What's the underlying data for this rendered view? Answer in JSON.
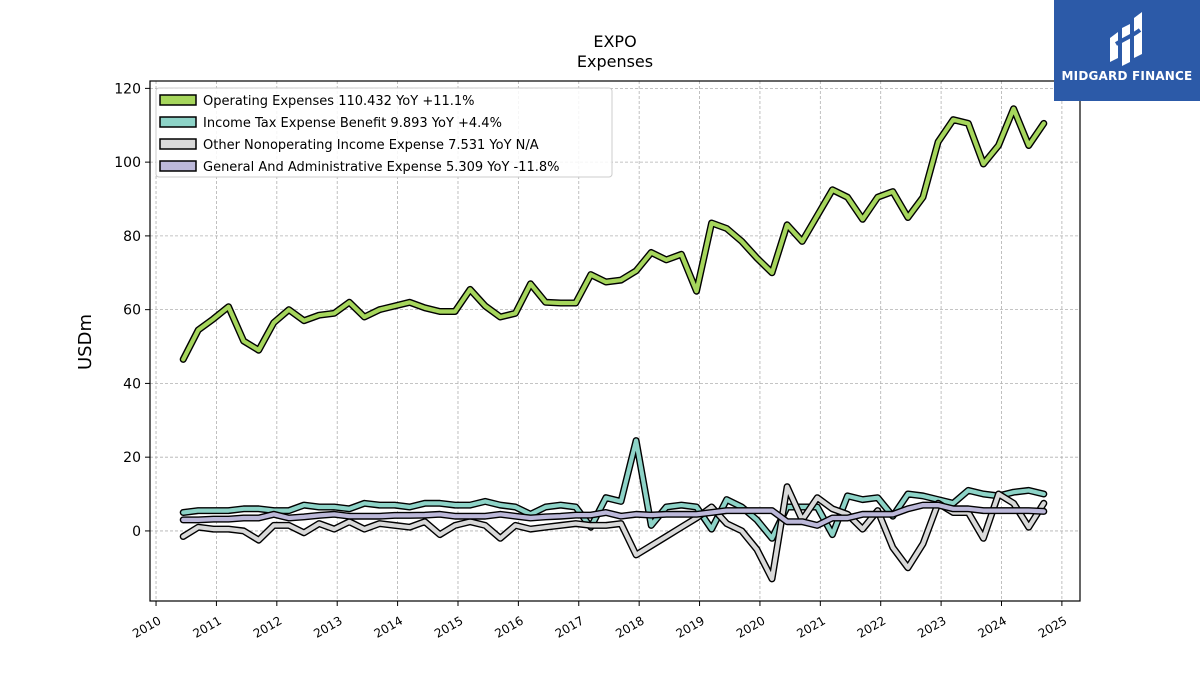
{
  "title": "EXPO",
  "subtitle": "Expenses",
  "brand": {
    "name": "MIDGARD FINANCE",
    "color": "#2c5aa8"
  },
  "chart_data": {
    "type": "line",
    "ylabel": "USDm",
    "xlabel": "",
    "xlim": [
      2009.9,
      2025.3
    ],
    "ylim": [
      -19,
      122
    ],
    "yticks": [
      0,
      20,
      40,
      60,
      80,
      100,
      120
    ],
    "xticks": [
      2010,
      2011,
      2012,
      2013,
      2014,
      2015,
      2016,
      2017,
      2018,
      2019,
      2020,
      2021,
      2022,
      2023,
      2024,
      2025
    ],
    "grid": true,
    "legend_position": "top-left",
    "x": [
      2010.45,
      2010.7,
      2010.95,
      2011.2,
      2011.45,
      2011.7,
      2011.95,
      2012.2,
      2012.45,
      2012.7,
      2012.95,
      2013.2,
      2013.45,
      2013.7,
      2013.95,
      2014.2,
      2014.45,
      2014.7,
      2014.95,
      2015.2,
      2015.45,
      2015.7,
      2015.95,
      2016.2,
      2016.45,
      2016.7,
      2016.95,
      2017.2,
      2017.45,
      2017.7,
      2017.95,
      2018.2,
      2018.45,
      2018.7,
      2018.95,
      2019.2,
      2019.45,
      2019.7,
      2019.95,
      2020.2,
      2020.45,
      2020.7,
      2020.95,
      2021.2,
      2021.45,
      2021.7,
      2021.95,
      2022.2,
      2022.45,
      2022.7,
      2022.95,
      2023.2,
      2023.45,
      2023.7,
      2023.95,
      2024.2,
      2024.45,
      2024.7
    ],
    "series": [
      {
        "name": "Operating Expenses",
        "legend_label": "Operating Expenses  110.432 YoY +11.1%",
        "color": "#a6d65c",
        "values": [
          46.5,
          54.5,
          57.5,
          60.8,
          51.5,
          49.0,
          56.5,
          60.0,
          57.0,
          58.5,
          59.0,
          62.0,
          58.0,
          60.0,
          61.0,
          62.0,
          60.5,
          59.5,
          59.5,
          65.5,
          61.0,
          58.0,
          59.0,
          67.0,
          62.0,
          61.8,
          61.8,
          69.5,
          67.5,
          68.0,
          70.5,
          75.5,
          73.5,
          75.0,
          65.0,
          83.5,
          82.0,
          78.5,
          74.0,
          70.0,
          83.0,
          78.5,
          85.5,
          92.5,
          90.5,
          84.5,
          90.5,
          92.0,
          85.0,
          90.5,
          105.5,
          111.5,
          110.5,
          99.5,
          104.5,
          114.5,
          104.5,
          110.5
        ]
      },
      {
        "name": "Income Tax Expense Benefit",
        "legend_label": "Income Tax Expense Benefit  9.893 YoY +4.4%",
        "color": "#8dd3c7",
        "values": [
          5.0,
          5.5,
          5.5,
          5.5,
          6.0,
          6.0,
          5.5,
          5.5,
          7.0,
          6.5,
          6.5,
          6.0,
          7.5,
          7.0,
          7.0,
          6.5,
          7.5,
          7.5,
          7.0,
          7.0,
          8.0,
          7.0,
          6.5,
          4.5,
          6.5,
          7.0,
          6.5,
          1.0,
          9.0,
          8.0,
          24.5,
          1.5,
          6.5,
          7.0,
          6.5,
          0.5,
          8.5,
          6.5,
          3.0,
          -2.0,
          6.5,
          6.5,
          6.5,
          -1.0,
          9.5,
          8.5,
          9.0,
          4.0,
          10.0,
          9.5,
          8.5,
          7.5,
          11.0,
          10.0,
          9.5,
          10.5,
          11.0,
          10.0
        ]
      },
      {
        "name": "Other Nonoperating Income Expense",
        "legend_label": "Other Nonoperating Income Expense  7.531 YoY N/A",
        "color": "#d9d9d9",
        "values": [
          -1.5,
          1.0,
          0.5,
          0.5,
          0.0,
          -2.5,
          1.5,
          1.5,
          -0.5,
          2.0,
          0.5,
          2.5,
          0.5,
          2.0,
          1.5,
          1.0,
          2.5,
          -1.0,
          1.5,
          2.5,
          1.5,
          -2.0,
          1.5,
          0.5,
          1.0,
          1.5,
          2.0,
          1.5,
          1.5,
          2.0,
          -6.5,
          -4.0,
          -1.5,
          1.0,
          3.5,
          6.5,
          2.0,
          0.0,
          -5.0,
          -13.0,
          12.0,
          3.0,
          9.0,
          6.0,
          4.5,
          0.5,
          5.5,
          -4.5,
          -10.0,
          -3.5,
          7.5,
          5.0,
          5.0,
          -2.0,
          10.0,
          7.5,
          1.0,
          7.5
        ]
      },
      {
        "name": "General And Administrative Expense",
        "legend_label": "General And Administrative Expense  5.309 YoY -11.8%",
        "color": "#bcb8d9",
        "values": [
          3.0,
          3.0,
          3.2,
          3.2,
          3.5,
          3.5,
          4.5,
          3.5,
          3.8,
          4.2,
          4.5,
          4.0,
          4.0,
          4.0,
          4.2,
          4.2,
          4.3,
          4.5,
          4.0,
          4.0,
          4.0,
          4.5,
          4.0,
          3.5,
          3.8,
          4.0,
          4.3,
          4.3,
          5.0,
          4.0,
          4.5,
          4.3,
          4.5,
          4.5,
          4.5,
          5.0,
          5.5,
          5.5,
          5.5,
          5.5,
          2.5,
          2.5,
          1.5,
          3.5,
          3.5,
          4.5,
          4.5,
          4.5,
          6.0,
          7.0,
          7.0,
          6.0,
          6.0,
          5.5,
          5.5,
          5.5,
          5.5,
          5.3
        ]
      }
    ]
  }
}
